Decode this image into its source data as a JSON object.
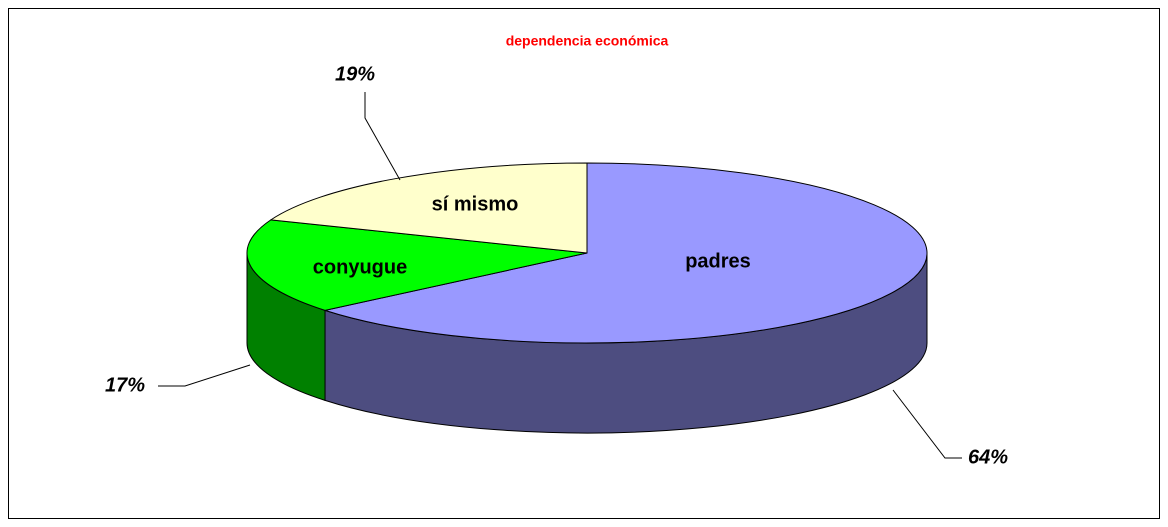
{
  "chart_data": {
    "type": "pie3d",
    "title": "dependencia económica",
    "categories": [
      "padres",
      "conyugue",
      "sí mismo"
    ],
    "values": [
      64,
      17,
      19
    ],
    "value_labels": [
      "64%",
      "17%",
      "19%"
    ],
    "colors": [
      "#9999ff",
      "#00ff00",
      "#ffffcc"
    ]
  }
}
